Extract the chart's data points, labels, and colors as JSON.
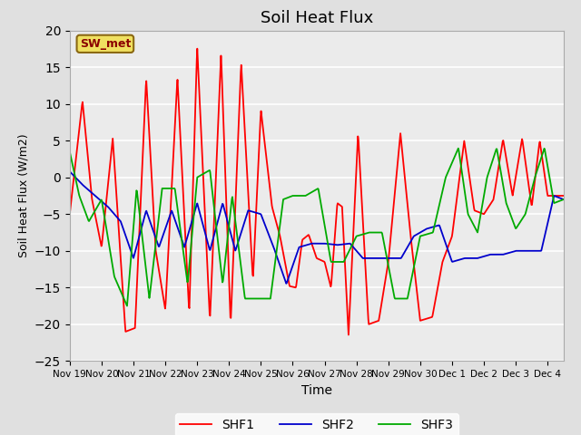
{
  "title": "Soil Heat Flux",
  "xlabel": "Time",
  "ylabel": "Soil Heat Flux (W/m2)",
  "ylim": [
    -25,
    20
  ],
  "annotation": "SW_met",
  "legend": [
    "SHF1",
    "SHF2",
    "SHF3"
  ],
  "colors": {
    "SHF1": "#ff0000",
    "SHF2": "#0000cc",
    "SHF3": "#00aa00"
  },
  "x_tick_labels": [
    "Nov 19",
    "Nov 20",
    "Nov 21",
    "Nov 22",
    "Nov 23",
    "Nov 24",
    "Nov 25",
    "Nov 26",
    "Nov 27",
    "Nov 28",
    "Nov 29",
    "Nov 30",
    "Dec 1",
    "Dec 2",
    "Dec 3",
    "Dec 4"
  ],
  "background_color": "#e0e0e0",
  "plot_bg_color": "#ebebeb",
  "shf1_x": [
    0.0,
    0.42,
    0.75,
    1.0,
    1.35,
    1.75,
    2.0,
    2.4,
    2.75,
    3.0,
    3.4,
    3.75,
    4.0,
    4.4,
    4.75,
    5.0,
    5.4,
    5.75,
    6.0,
    6.4,
    6.6,
    6.75,
    7.0,
    7.2,
    7.4,
    7.6,
    7.75,
    8.0,
    8.2,
    8.4,
    8.6,
    8.75,
    9.0,
    9.4,
    9.75,
    10.0,
    10.4,
    10.75,
    11.0,
    11.4,
    11.75,
    12.0,
    12.4,
    12.75,
    13.0,
    13.4,
    13.75,
    14.0,
    14.4,
    14.75,
    15.0,
    15.5
  ],
  "shf1_y": [
    -5.0,
    10.4,
    -4.0,
    -9.5,
    5.3,
    -21.0,
    -20.5,
    13.5,
    -10.0,
    -18.0,
    13.5,
    -18.5,
    17.8,
    -19.5,
    16.8,
    -20.0,
    15.6,
    -14.5,
    9.2,
    -4.0,
    -8.0,
    -9.5,
    -14.8,
    -15.0,
    -8.5,
    -7.8,
    -11.0,
    -11.5,
    -15.0,
    -3.5,
    -4.0,
    -21.5,
    6.0,
    -20.0,
    -19.5,
    -11.5,
    6.0,
    -8.0,
    -19.5,
    -19.0,
    -11.5,
    -8.0,
    5.0,
    -4.5,
    -5.0,
    -3.0,
    5.2,
    -2.5,
    5.3,
    -4.0,
    5.0,
    -2.5
  ],
  "shf2_x": [
    0.0,
    0.5,
    1.0,
    1.5,
    2.0,
    2.5,
    3.0,
    3.5,
    4.0,
    4.5,
    5.0,
    5.5,
    6.0,
    6.5,
    7.0,
    7.5,
    8.0,
    8.5,
    9.0,
    9.5,
    10.0,
    10.5,
    11.0,
    11.5,
    12.0,
    12.5,
    13.0,
    13.5,
    14.0,
    14.5,
    15.0,
    15.5
  ],
  "shf2_y": [
    0.8,
    -1.5,
    -3.5,
    -6.0,
    -10.5,
    -4.5,
    -9.5,
    -4.5,
    -3.5,
    -9.5,
    -4.5,
    -9.5,
    -5.0,
    -14.5,
    -9.5,
    -9.0,
    -9.0,
    -9.2,
    -9.0,
    -11.0,
    -11.0,
    -11.0,
    -8.0,
    -7.0,
    -6.5,
    -11.5,
    -11.0,
    -11.0,
    -10.5,
    -10.5,
    -10.0,
    -3.0
  ],
  "shf3_x": [
    0.0,
    0.3,
    0.6,
    1.0,
    1.5,
    2.0,
    2.5,
    3.0,
    3.5,
    4.0,
    4.5,
    5.0,
    5.5,
    6.0,
    6.5,
    7.0,
    7.5,
    8.0,
    8.5,
    9.0,
    9.5,
    10.0,
    10.5,
    11.0,
    11.5,
    12.0,
    12.5,
    13.0,
    13.4,
    13.7,
    14.0,
    14.3,
    14.6,
    15.0,
    15.5
  ],
  "shf3_y": [
    3.5,
    -2.5,
    -6.0,
    -3.0,
    -13.5,
    -17.5,
    -1.5,
    -16.5,
    -1.5,
    0.0,
    -14.5,
    1.0,
    -14.5,
    -2.5,
    -16.5,
    -16.5,
    -16.5,
    -3.0,
    -2.5,
    -2.5,
    -1.5,
    -11.5,
    -11.5,
    -8.0,
    -7.5,
    -7.5,
    -16.5,
    -16.5,
    -8.0,
    0.0,
    4.0,
    -5.0,
    -7.5,
    4.0,
    -3.0
  ]
}
